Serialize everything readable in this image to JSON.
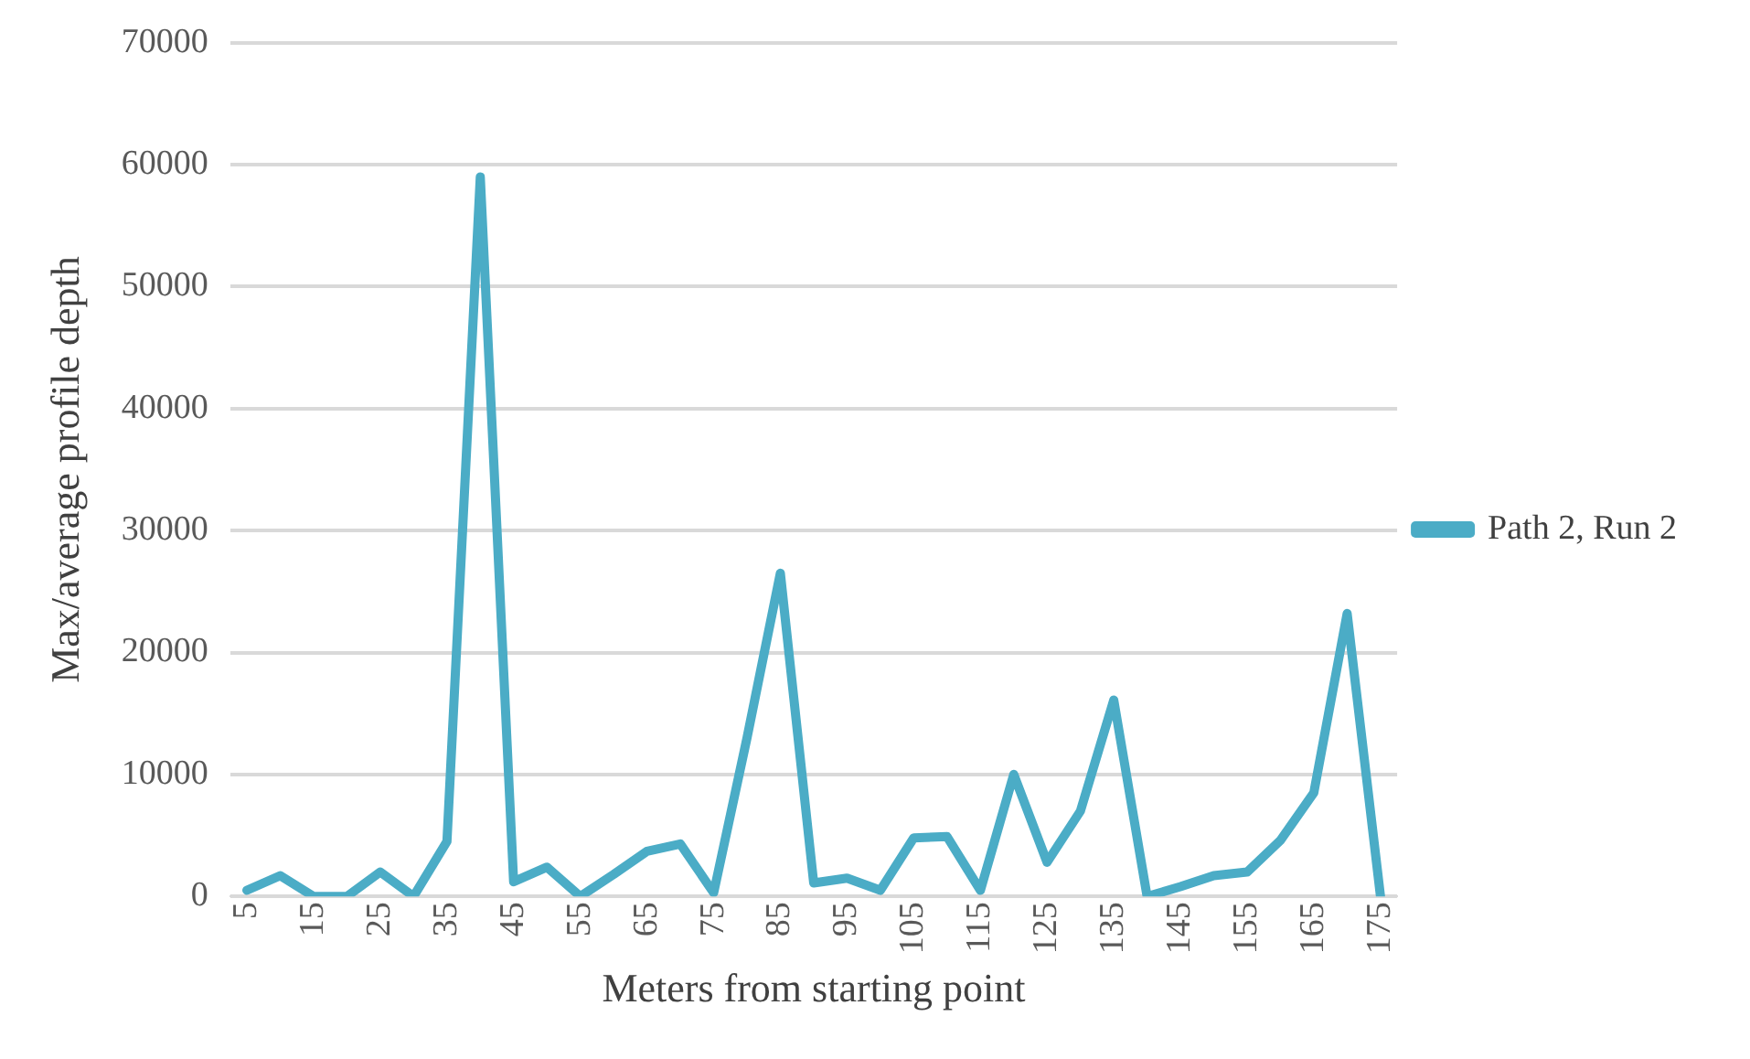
{
  "chart_data": {
    "type": "line",
    "xlabel": "Meters from starting point",
    "ylabel": "Max/average profile depth",
    "categories": [
      "5",
      null,
      "15",
      null,
      "25",
      null,
      "35",
      null,
      "45",
      null,
      "55",
      null,
      "65",
      null,
      "75",
      null,
      "85",
      null,
      "95",
      null,
      "105",
      null,
      "115",
      null,
      "125",
      null,
      "135",
      null,
      "145",
      null,
      "155",
      null,
      "165",
      null,
      "175"
    ],
    "series": [
      {
        "name": "Path 2, Run 2",
        "color": "#4bacc6",
        "values": [
          500,
          1700,
          0,
          0,
          2000,
          0,
          4500,
          59000,
          1200,
          2400,
          0,
          1800,
          3700,
          4300,
          300,
          13000,
          26500,
          1100,
          1500,
          500,
          4800,
          4900,
          500,
          10000,
          2800,
          7000,
          16100,
          0,
          800,
          1700,
          2000,
          4600,
          8500,
          23200,
          0
        ]
      }
    ],
    "ylim": [
      0,
      70000
    ],
    "yticks": [
      0,
      10000,
      20000,
      30000,
      40000,
      50000,
      60000,
      70000
    ],
    "grid": "y",
    "legend": "right",
    "marker": "none",
    "line_style": "solid"
  }
}
